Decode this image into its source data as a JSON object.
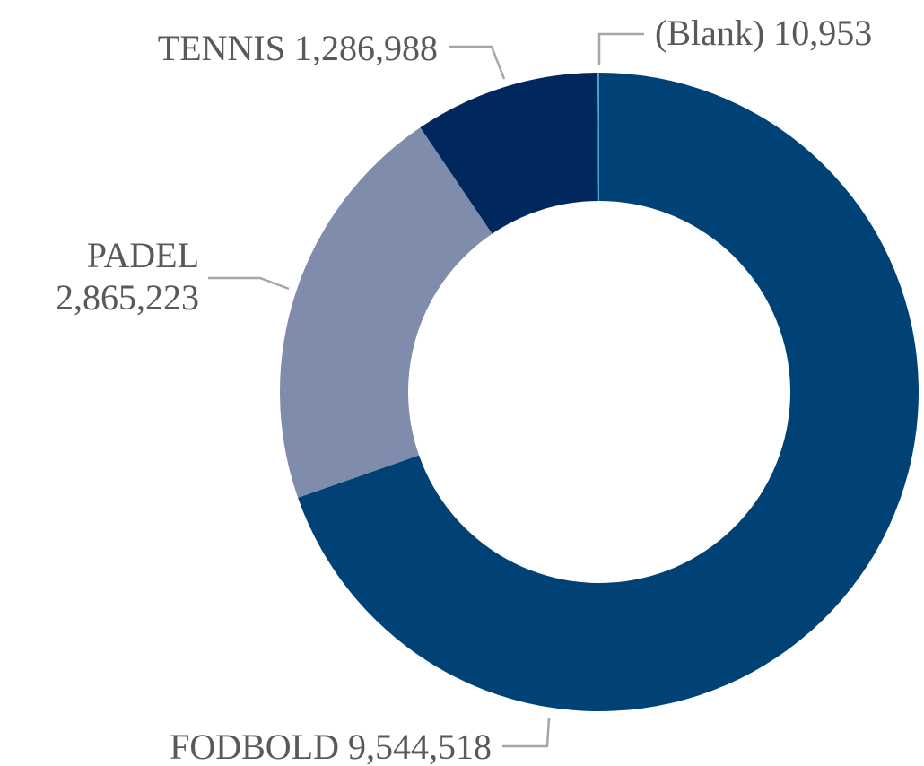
{
  "chart_data": {
    "type": "donut",
    "categories": [
      "FODBOLD",
      "PADEL",
      "TENNIS",
      "(Blank)"
    ],
    "values": [
      9544518,
      2865223,
      1286988,
      10953
    ],
    "value_labels": [
      "9,544,518",
      "2,865,223",
      "1,286,988",
      "10,953"
    ],
    "colors": [
      "#004275",
      "#7f8cab",
      "#00285f",
      "#4fa3c8"
    ]
  }
}
